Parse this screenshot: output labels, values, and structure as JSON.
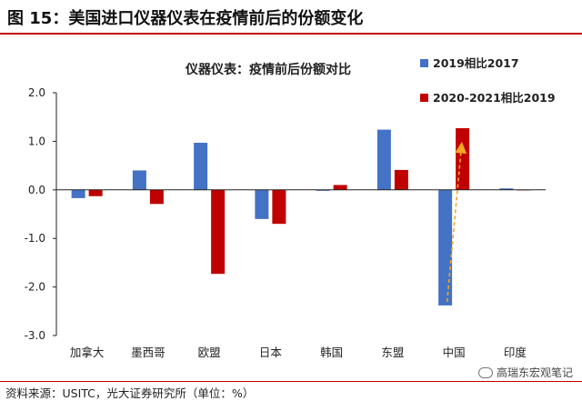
{
  "figure_title": "图 15：美国进口仪器仪表在疫情前后的份额变化",
  "source_note": "资料来源：USITC，光大证券研究所（单位：%）",
  "watermark": "高瑞东宏观笔记",
  "chart_data": {
    "type": "bar",
    "title": "仪器仪表：疫情前后份额对比",
    "categories": [
      "加拿大",
      "墨西哥",
      "欧盟",
      "日本",
      "韩国",
      "东盟",
      "中国",
      "印度"
    ],
    "series": [
      {
        "name": "2019相比2017",
        "color": "#4472c4",
        "values": [
          -0.17,
          0.4,
          0.97,
          -0.6,
          -0.02,
          1.24,
          -2.38,
          0.03
        ]
      },
      {
        "name": "2020-2021相比2019",
        "color": "#c00000",
        "values": [
          -0.13,
          -0.29,
          -1.73,
          -0.7,
          0.1,
          0.41,
          1.27,
          0.0
        ]
      }
    ],
    "ylim": [
      -3.0,
      2.0
    ],
    "yticks": [
      "2.0",
      "1.0",
      "0.0",
      "-1.0",
      "-2.0",
      "-3.0"
    ],
    "legend_position": "top-right",
    "annotation": "dashed orange arrow from China 2019相比2017 bar to China 2020-2021相比2019 bar",
    "annotation_color": "#f5a623"
  }
}
